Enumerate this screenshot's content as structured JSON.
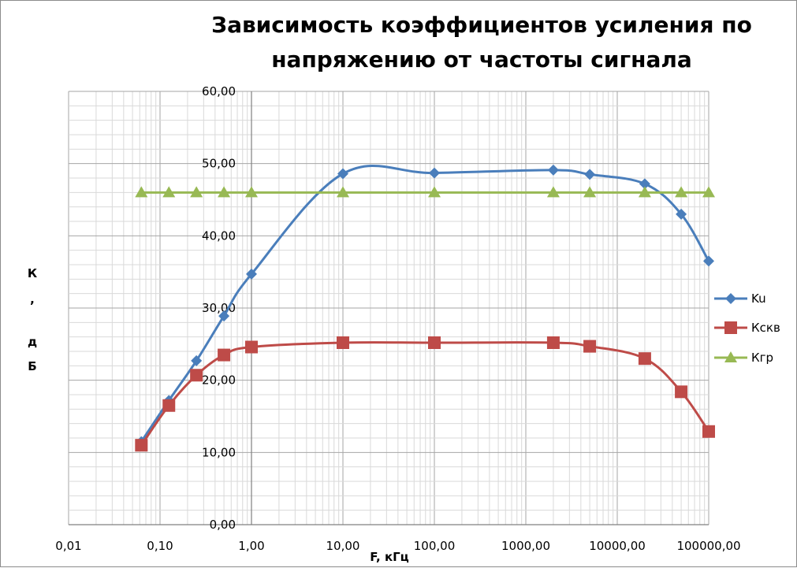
{
  "chart_data": {
    "type": "line",
    "title": "Зависимость коэффициентов усиления по напряжению от частоты сигнала",
    "title_lines": [
      "Зависимость коэффициентов усиления по",
      "напряжению от частоты сигнала"
    ],
    "xlabel": "F, кГц",
    "ylabel": "К, дБ",
    "ylabel_chars": [
      "К",
      ",",
      "д",
      "Б"
    ],
    "x_scale": "log",
    "xlim": [
      0.01,
      100000
    ],
    "ylim": [
      0,
      60
    ],
    "x_ticks": [
      0.01,
      0.1,
      1,
      10,
      100,
      1000,
      10000,
      100000
    ],
    "x_tick_labels": [
      "0,01",
      "0,10",
      "1,00",
      "10,00",
      "100,00",
      "1000,00",
      "10000,00",
      "100000,00"
    ],
    "y_ticks": [
      0,
      10,
      20,
      30,
      40,
      50,
      60
    ],
    "y_tick_labels": [
      "0,00",
      "10,00",
      "20,00",
      "30,00",
      "40,00",
      "50,00",
      "60,00"
    ],
    "grid": true,
    "legend_position": "right",
    "series": [
      {
        "name": "Ku",
        "color": "#4a7ebb",
        "marker": "diamond",
        "x": [
          0.0625,
          0.125,
          0.25,
          0.5,
          1,
          10,
          100,
          2000,
          5000,
          20000,
          50000,
          100000
        ],
        "y": [
          11.5,
          17.2,
          22.7,
          28.9,
          34.7,
          48.6,
          48.7,
          49.1,
          48.5,
          47.2,
          43.0,
          36.5
        ]
      },
      {
        "name": "Кскв",
        "color": "#be4b48",
        "marker": "square",
        "x": [
          0.0625,
          0.125,
          0.25,
          0.5,
          1,
          10,
          100,
          2000,
          5000,
          20000,
          50000,
          100000
        ],
        "y": [
          11.0,
          16.5,
          20.7,
          23.5,
          24.6,
          25.2,
          25.2,
          25.2,
          24.7,
          23.0,
          18.4,
          12.9
        ]
      },
      {
        "name": "Кгр",
        "color": "#98b954",
        "marker": "triangle",
        "x": [
          0.0625,
          0.125,
          0.25,
          0.5,
          1,
          10,
          100,
          2000,
          5000,
          20000,
          50000,
          100000
        ],
        "y": [
          46,
          46,
          46,
          46,
          46,
          46,
          46,
          46,
          46,
          46,
          46,
          46
        ]
      }
    ]
  }
}
